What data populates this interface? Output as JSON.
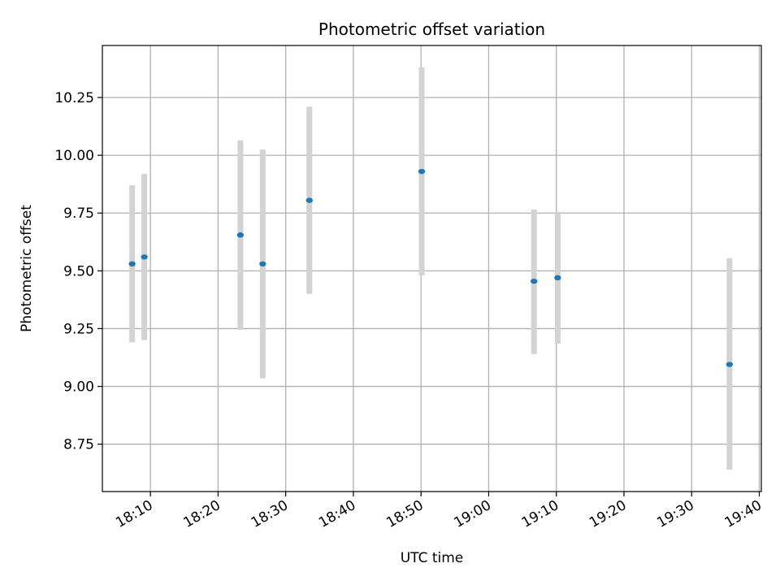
{
  "chart_data": {
    "type": "scatter",
    "title": "Photometric offset variation",
    "xlabel": "UTC time",
    "ylabel": "Photometric offset",
    "grid": true,
    "legend": "none",
    "x_ticks": [
      "18:10",
      "18:20",
      "18:30",
      "18:40",
      "18:50",
      "19:00",
      "19:10",
      "19:20",
      "19:30",
      "19:40"
    ],
    "y_ticks": [
      "8.75",
      "9.00",
      "9.25",
      "9.50",
      "9.75",
      "10.00",
      "10.25"
    ],
    "xlim": [
      "18:02:54",
      "19:40:18"
    ],
    "ylim": [
      8.545,
      10.475
    ],
    "colors": {
      "marker": "#1f77b4",
      "errorbar": "#d3d3d3",
      "grid": "#b0b0b0",
      "axes": "#000000"
    },
    "series": [
      {
        "points": [
          {
            "x": "18:07:18",
            "y": 9.53,
            "ymin": 9.19,
            "ymax": 9.87
          },
          {
            "x": "18:09:06",
            "y": 9.56,
            "ymin": 9.2,
            "ymax": 9.92
          },
          {
            "x": "18:23:18",
            "y": 9.655,
            "ymin": 9.245,
            "ymax": 10.065
          },
          {
            "x": "18:26:36",
            "y": 9.53,
            "ymin": 9.035,
            "ymax": 10.025
          },
          {
            "x": "18:33:30",
            "y": 9.805,
            "ymin": 9.4,
            "ymax": 10.21
          },
          {
            "x": "18:50:06",
            "y": 9.93,
            "ymin": 9.48,
            "ymax": 10.38
          },
          {
            "x": "19:06:42",
            "y": 9.455,
            "ymin": 9.14,
            "ymax": 9.765
          },
          {
            "x": "19:10:12",
            "y": 9.47,
            "ymin": 9.185,
            "ymax": 9.755
          },
          {
            "x": "19:35:36",
            "y": 9.095,
            "ymin": 8.64,
            "ymax": 9.555
          }
        ]
      }
    ]
  }
}
